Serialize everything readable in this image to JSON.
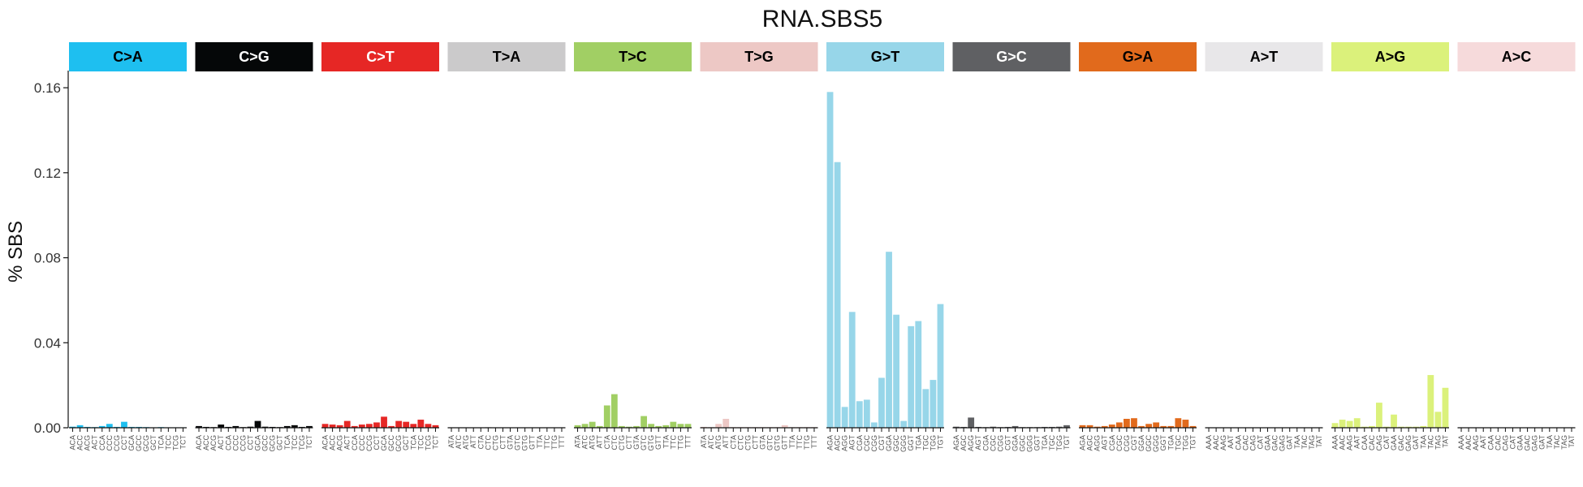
{
  "chart_data": {
    "type": "bar",
    "title": "RNA.SBS5",
    "ylabel": "% SBS",
    "xlabel": "",
    "ylim": [
      0,
      0.165
    ],
    "yticks": [
      "0.00",
      "0.04",
      "0.08",
      "0.12",
      "0.16"
    ],
    "ytick_values": [
      0,
      0.04,
      0.08,
      0.12,
      0.16
    ],
    "grid": false,
    "legend": "none",
    "panels": [
      {
        "name": "C>A",
        "color": "#1EBFF0",
        "text_color": "#000000",
        "categories": [
          "ACA",
          "ACC",
          "ACG",
          "ACT",
          "CCA",
          "CCC",
          "CCG",
          "CCT",
          "GCA",
          "GCC",
          "GCG",
          "GCT",
          "TCA",
          "TCC",
          "TCG",
          "TCT"
        ],
        "values": [
          0.0005,
          0.0012,
          0.0004,
          0.0003,
          0.0008,
          0.0018,
          0.0004,
          0.0028,
          0.0004,
          0.0004,
          0.0003,
          0.0002,
          0.0003,
          0.0002,
          0.0002,
          0.0002
        ]
      },
      {
        "name": "C>G",
        "color": "#050708",
        "text_color": "#FFFFFF",
        "categories": [
          "ACA",
          "ACC",
          "ACG",
          "ACT",
          "CCA",
          "CCC",
          "CCG",
          "CCT",
          "GCA",
          "GCC",
          "GCG",
          "GCT",
          "TCA",
          "TCC",
          "TCG",
          "TCT"
        ],
        "values": [
          0.0008,
          0.0004,
          0.0003,
          0.0015,
          0.0004,
          0.0008,
          0.0003,
          0.0005,
          0.0032,
          0.0005,
          0.0004,
          0.0003,
          0.0008,
          0.0012,
          0.0004,
          0.0008
        ]
      },
      {
        "name": "C>T",
        "color": "#E62725",
        "text_color": "#FFFFFF",
        "categories": [
          "ACA",
          "ACC",
          "ACG",
          "ACT",
          "CCA",
          "CCC",
          "CCG",
          "CCT",
          "GCA",
          "GCC",
          "GCG",
          "GCT",
          "TCA",
          "TCC",
          "TCG",
          "TCT"
        ],
        "values": [
          0.0018,
          0.0015,
          0.0012,
          0.0032,
          0.0008,
          0.0015,
          0.0018,
          0.0025,
          0.0052,
          0.0008,
          0.0032,
          0.0028,
          0.0018,
          0.0038,
          0.0018,
          0.0012
        ]
      },
      {
        "name": "T>A",
        "color": "#CBCACB",
        "text_color": "#000000",
        "categories": [
          "ATA",
          "ATC",
          "ATG",
          "ATT",
          "CTA",
          "CTC",
          "CTG",
          "CTT",
          "GTA",
          "GTC",
          "GTG",
          "GTT",
          "TTA",
          "TTC",
          "TTG",
          "TTT"
        ],
        "values": [
          0.0002,
          0.0002,
          0.0002,
          0.0002,
          0.0002,
          0.0003,
          0.0002,
          0.0002,
          0.0002,
          0.0002,
          0.0002,
          0.0002,
          0.0002,
          0.0002,
          0.0002,
          0.0002
        ]
      },
      {
        "name": "T>C",
        "color": "#A1CF64",
        "text_color": "#000000",
        "categories": [
          "ATA",
          "ATC",
          "ATG",
          "ATT",
          "CTA",
          "CTC",
          "CTG",
          "CTT",
          "GTA",
          "GTC",
          "GTG",
          "GTT",
          "TTA",
          "TTC",
          "TTG",
          "TTT"
        ],
        "values": [
          0.0012,
          0.0018,
          0.0028,
          0.0008,
          0.0105,
          0.0158,
          0.0008,
          0.0005,
          0.0008,
          0.0055,
          0.0018,
          0.0008,
          0.0012,
          0.0028,
          0.0018,
          0.0018
        ]
      },
      {
        "name": "T>G",
        "color": "#EDC8C5",
        "text_color": "#000000",
        "categories": [
          "ATA",
          "ATC",
          "ATG",
          "ATT",
          "CTA",
          "CTC",
          "CTG",
          "CTT",
          "GTA",
          "GTC",
          "GTG",
          "GTT",
          "TTA",
          "TTC",
          "TTG",
          "TTT"
        ],
        "values": [
          0.0004,
          0.0003,
          0.0018,
          0.0042,
          0.0003,
          0.0003,
          0.0003,
          0.0003,
          0.0003,
          0.0003,
          0.0003,
          0.0012,
          0.0003,
          0.0003,
          0.0003,
          0.0003
        ]
      },
      {
        "name": "G>T",
        "color": "#97D6E9",
        "text_color": "#000000",
        "categories": [
          "AGA",
          "AGC",
          "AGG",
          "AGT",
          "CGA",
          "CGC",
          "CGG",
          "CGT",
          "GGA",
          "GGC",
          "GGG",
          "GGT",
          "TGA",
          "TGC",
          "TGG",
          "TGT"
        ],
        "values": [
          0.158,
          0.125,
          0.0098,
          0.0545,
          0.0125,
          0.0132,
          0.0025,
          0.0235,
          0.0828,
          0.0532,
          0.0032,
          0.0478,
          0.0502,
          0.0182,
          0.0225,
          0.0582
        ]
      },
      {
        "name": "G>C",
        "color": "#5F6063",
        "text_color": "#FFFFFF",
        "categories": [
          "AGA",
          "AGC",
          "AGG",
          "AGT",
          "CGA",
          "CGC",
          "CGG",
          "CGT",
          "GGA",
          "GGC",
          "GGG",
          "GGT",
          "TGA",
          "TGC",
          "TGG",
          "TGT"
        ],
        "values": [
          0.0005,
          0.0004,
          0.0048,
          0.0004,
          0.0003,
          0.0005,
          0.0003,
          0.0004,
          0.0008,
          0.0003,
          0.0003,
          0.0003,
          0.0004,
          0.0004,
          0.0005,
          0.0012
        ]
      },
      {
        "name": "G>A",
        "color": "#E16A1C",
        "text_color": "#000000",
        "categories": [
          "AGA",
          "AGC",
          "AGG",
          "AGT",
          "CGA",
          "CGC",
          "CGG",
          "CGT",
          "GGA",
          "GGC",
          "GGG",
          "GGT",
          "TGA",
          "TGC",
          "TGG",
          "TGT"
        ],
        "values": [
          0.0012,
          0.0012,
          0.0005,
          0.0008,
          0.0015,
          0.0025,
          0.0042,
          0.0045,
          0.0008,
          0.0018,
          0.0025,
          0.0008,
          0.0008,
          0.0045,
          0.0038,
          0.0008
        ]
      },
      {
        "name": "A>T",
        "color": "#E8E7E9",
        "text_color": "#000000",
        "categories": [
          "AAA",
          "AAC",
          "AAG",
          "AAT",
          "CAA",
          "CAC",
          "CAG",
          "CAT",
          "GAA",
          "GAC",
          "GAG",
          "GAT",
          "TAA",
          "TAC",
          "TAG",
          "TAT"
        ],
        "values": [
          0.0002,
          0.0002,
          0.0002,
          0.0002,
          0.0002,
          0.0002,
          0.0002,
          0.0002,
          0.0002,
          0.0002,
          0.0002,
          0.0002,
          0.0002,
          0.0002,
          0.0002,
          0.0002
        ]
      },
      {
        "name": "A>G",
        "color": "#DBF17B",
        "text_color": "#000000",
        "categories": [
          "AAA",
          "AAC",
          "AAG",
          "AAT",
          "CAA",
          "CAC",
          "CAG",
          "CAT",
          "GAA",
          "GAC",
          "GAG",
          "GAT",
          "TAA",
          "TAC",
          "TAG",
          "TAT"
        ],
        "values": [
          0.0022,
          0.0038,
          0.0032,
          0.0045,
          0.0005,
          0.0008,
          0.0118,
          0.0005,
          0.0062,
          0.0005,
          0.0005,
          0.0005,
          0.0008,
          0.0248,
          0.0075,
          0.0188
        ]
      },
      {
        "name": "A>C",
        "color": "#F6DADB",
        "text_color": "#000000",
        "categories": [
          "AAA",
          "AAC",
          "AAG",
          "AAT",
          "CAA",
          "CAC",
          "CAG",
          "CAT",
          "GAA",
          "GAC",
          "GAG",
          "GAT",
          "TAA",
          "TAC",
          "TAG",
          "TAT"
        ],
        "values": [
          0.0002,
          0.0002,
          0.0002,
          0.0002,
          0.0002,
          0.0002,
          0.0002,
          0.0002,
          0.0002,
          0.0002,
          0.0002,
          0.0002,
          0.0002,
          0.0002,
          0.0002,
          0.0002
        ]
      }
    ]
  }
}
